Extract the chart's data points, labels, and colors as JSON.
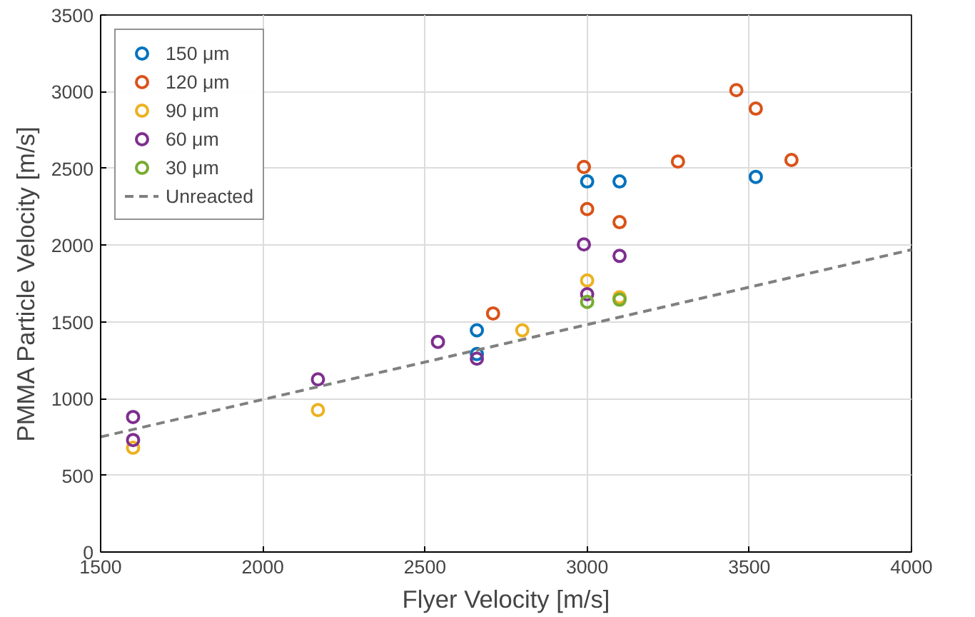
{
  "chart_data": {
    "type": "scatter",
    "xlabel": "Flyer Velocity [m/s]",
    "ylabel": "PMMA Particle Velocity [m/s]",
    "xlim": [
      1500,
      4000
    ],
    "ylim": [
      0,
      3500
    ],
    "xticks": [
      1500,
      2000,
      2500,
      3000,
      3500,
      4000
    ],
    "yticks": [
      0,
      500,
      1000,
      1500,
      2000,
      2500,
      3000,
      3500
    ],
    "grid": true,
    "legend": "top left",
    "marker": "circle",
    "series": [
      {
        "name": "150 μm",
        "color": "#0072bd",
        "x": [
          2660,
          2660,
          3000,
          3100,
          3520
        ],
        "values": [
          1445,
          1290,
          2415,
          2415,
          2445
        ]
      },
      {
        "name": "120 μm",
        "color": "#d95319",
        "x": [
          2710,
          2990,
          3000,
          3100,
          3280,
          3460,
          3520,
          3630
        ],
        "values": [
          1555,
          2510,
          2235,
          2150,
          2545,
          3010,
          2890,
          2555
        ]
      },
      {
        "name": "90 μm",
        "color": "#edb120",
        "x": [
          1600,
          2170,
          2800,
          3000,
          3100
        ],
        "values": [
          680,
          925,
          1445,
          1770,
          1660
        ]
      },
      {
        "name": "60 μm",
        "color": "#7e2f8e",
        "x": [
          1600,
          1600,
          2170,
          2540,
          2660,
          2990,
          3000,
          3100
        ],
        "values": [
          880,
          730,
          1125,
          1370,
          1260,
          2005,
          1680,
          1930
        ]
      },
      {
        "name": "30 μm",
        "color": "#77ac30",
        "x": [
          3000,
          3100
        ],
        "values": [
          1630,
          1645
        ]
      },
      {
        "name": "Unreacted",
        "color": "#808080",
        "type": "line",
        "line_style": "dashed",
        "marker": "none",
        "x": [
          1500,
          4000
        ],
        "values": [
          750,
          1970
        ]
      }
    ]
  }
}
